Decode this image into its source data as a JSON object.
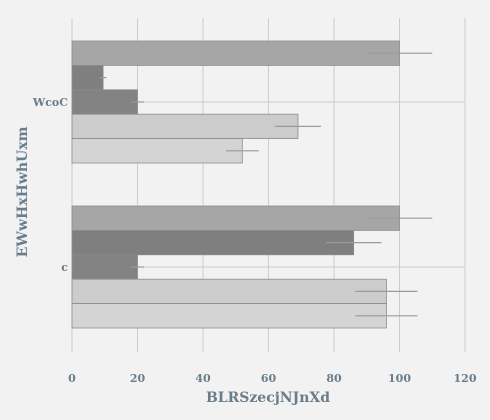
{
  "chart_data": {
    "type": "bar",
    "orientation": "horizontal",
    "title": "",
    "xlabel": "BLRSzecjNJnXd",
    "ylabel": "EWwHxHwhUxm",
    "xlim": [
      0,
      120
    ],
    "xticks": [
      0,
      20,
      40,
      60,
      80,
      100,
      120
    ],
    "grid": true,
    "legend": "none",
    "categories": [
      "WcoC",
      "c"
    ],
    "series": [
      {
        "color": "#a6a6a6",
        "values": [
          100,
          100
        ],
        "errors": [
          10,
          10
        ]
      },
      {
        "color": "#7f7f7f",
        "values": [
          9.5,
          86
        ],
        "errors": [
          1,
          8.5
        ]
      },
      {
        "color": "#838383",
        "values": [
          20,
          20
        ],
        "errors": [
          2,
          2
        ]
      },
      {
        "color": "#cccccc",
        "values": [
          69,
          96
        ],
        "errors": [
          7,
          9.5
        ]
      },
      {
        "color": "#d4d4d4",
        "values": [
          52,
          96
        ],
        "errors": [
          5,
          9.5
        ]
      }
    ]
  }
}
